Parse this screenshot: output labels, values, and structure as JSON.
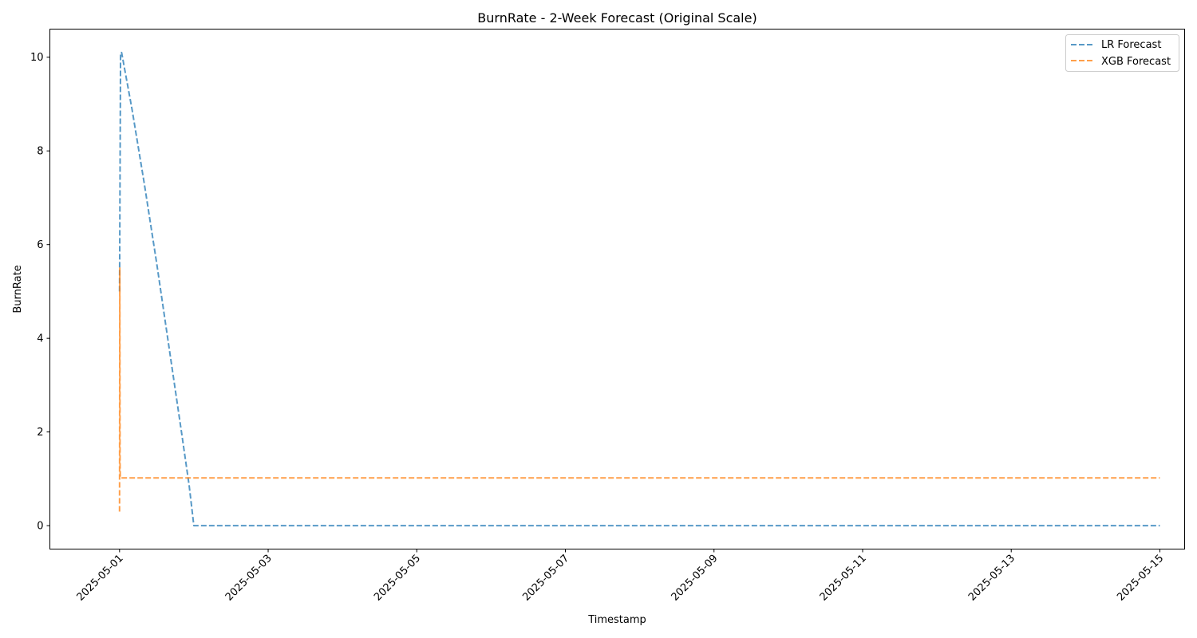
{
  "chart_data": {
    "type": "line",
    "title": "BurnRate - 2-Week Forecast (Original Scale)",
    "xlabel": "Timestamp",
    "ylabel": "BurnRate",
    "x_type": "datetime",
    "xlim": [
      "2025-04-30T01:30",
      "2025-05-15T08:00"
    ],
    "ylim": [
      -0.5,
      10.6
    ],
    "yticks": [
      0,
      2,
      4,
      6,
      8,
      10
    ],
    "xticks": [
      "2025-05-01",
      "2025-05-03",
      "2025-05-05",
      "2025-05-07",
      "2025-05-09",
      "2025-05-11",
      "2025-05-13",
      "2025-05-15"
    ],
    "grid": false,
    "legend_position": "top-right",
    "series": [
      {
        "name": "LR Forecast",
        "color": "#1f77b4",
        "style": "dashed",
        "points": [
          [
            "2025-05-01T00:00",
            5.0
          ],
          [
            "2025-05-01T00:20",
            10.1
          ],
          [
            "2025-05-01T00:40",
            10.1
          ],
          [
            "2025-05-01T04:00",
            8.9
          ],
          [
            "2025-05-01T08:00",
            7.3
          ],
          [
            "2025-05-01T12:00",
            5.6
          ],
          [
            "2025-05-01T16:00",
            3.8
          ],
          [
            "2025-05-01T20:00",
            2.0
          ],
          [
            "2025-05-01T22:30",
            0.85
          ],
          [
            "2025-05-02T00:00",
            0.0
          ],
          [
            "2025-05-15T00:00",
            0.0
          ]
        ]
      },
      {
        "name": "XGB Forecast",
        "color": "#ff7f0e",
        "style": "dashed",
        "points": [
          [
            "2025-05-01T00:00",
            0.3
          ],
          [
            "2025-05-01T00:05",
            5.5
          ],
          [
            "2025-05-01T00:10",
            1.3
          ],
          [
            "2025-05-01T00:15",
            1.02
          ],
          [
            "2025-05-15T00:00",
            1.02
          ]
        ]
      }
    ]
  }
}
